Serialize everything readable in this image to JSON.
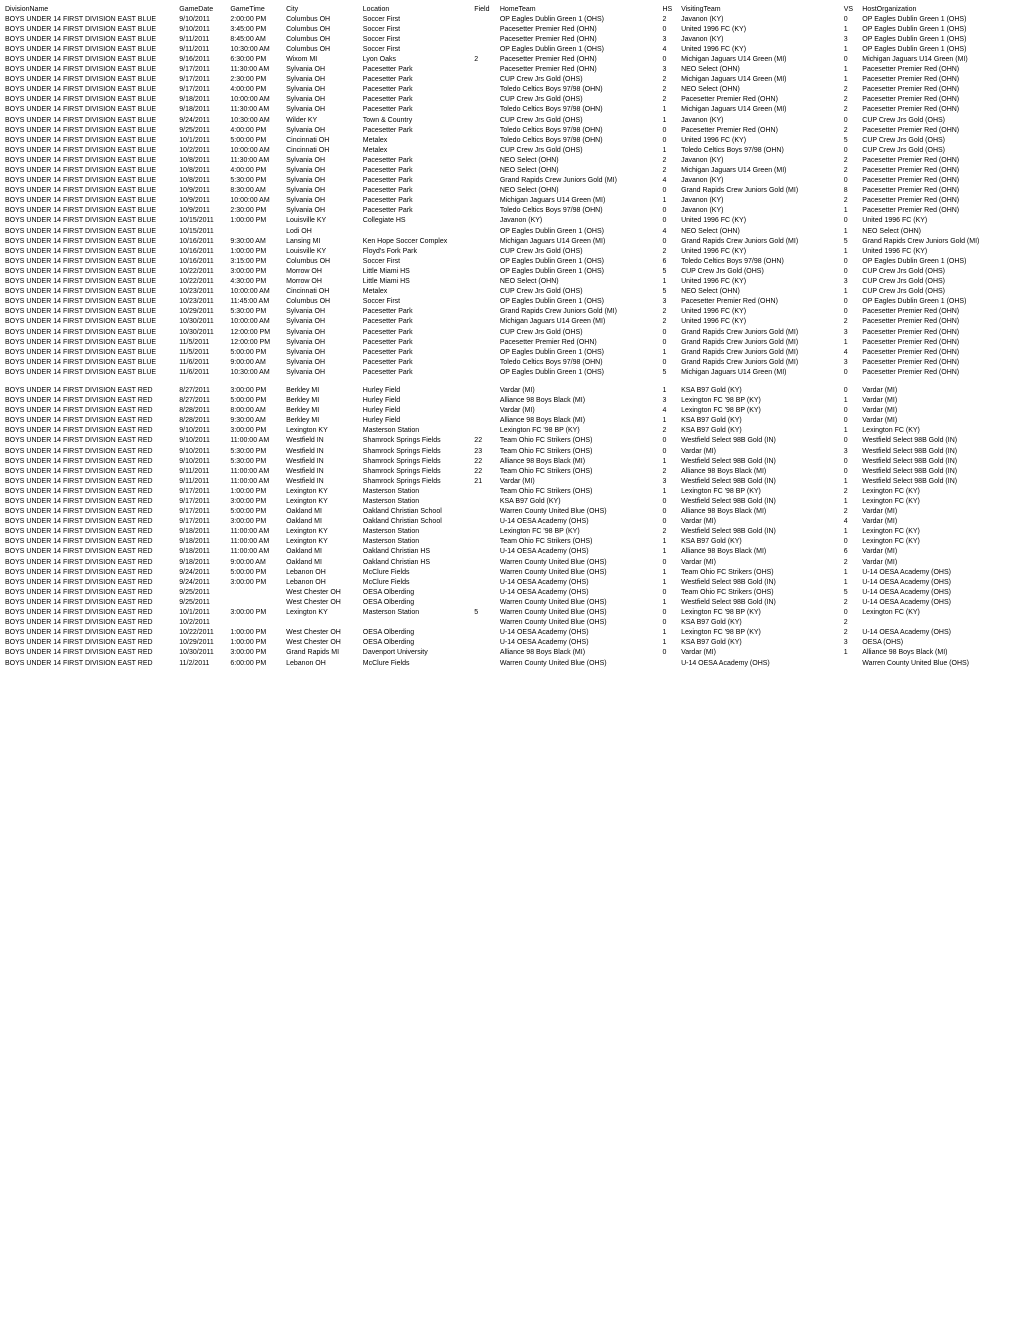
{
  "headers": [
    "DivisionName",
    "GameDate",
    "GameTime",
    "City",
    "Location",
    "Field",
    "HomeTeam",
    "HS",
    "VisitingTeam",
    "VS",
    "HostOrganization"
  ],
  "rows": [
    [
      "BOYS UNDER 14 FIRST DIVISION EAST BLUE",
      "9/10/2011",
      "2:00:00 PM",
      "Columbus OH",
      "Soccer First",
      "",
      "OP Eagles Dublin Green 1 (OHS)",
      "2",
      "Javanon (KY)",
      "0",
      "OP Eagles Dublin Green 1 (OHS)"
    ],
    [
      "BOYS UNDER 14 FIRST DIVISION EAST BLUE",
      "9/10/2011",
      "3:45:00 PM",
      "Columbus OH",
      "Soccer First",
      "",
      "Pacesetter Premier Red (OHN)",
      "0",
      "United 1996 FC (KY)",
      "1",
      "OP Eagles Dublin Green 1 (OHS)"
    ],
    [
      "BOYS UNDER 14 FIRST DIVISION EAST BLUE",
      "9/11/2011",
      "8:45:00 AM",
      "Columbus OH",
      "Soccer First",
      "",
      "Pacesetter Premier Red (OHN)",
      "3",
      "Javanon (KY)",
      "3",
      "OP Eagles Dublin Green 1 (OHS)"
    ],
    [
      "BOYS UNDER 14 FIRST DIVISION EAST BLUE",
      "9/11/2011",
      "10:30:00 AM",
      "Columbus OH",
      "Soccer First",
      "",
      "OP Eagles Dublin Green 1 (OHS)",
      "4",
      "United 1996 FC (KY)",
      "1",
      "OP Eagles Dublin Green 1 (OHS)"
    ],
    [
      "BOYS UNDER 14 FIRST DIVISION EAST BLUE",
      "9/16/2011",
      "6:30:00 PM",
      "Wixom MI",
      "Lyon Oaks",
      "2",
      "Pacesetter Premier Red (OHN)",
      "0",
      "Michigan Jaguars U14 Green (MI)",
      "0",
      "Michigan Jaguars U14 Green (MI)"
    ],
    [
      "BOYS UNDER 14 FIRST DIVISION EAST BLUE",
      "9/17/2011",
      "11:30:00 AM",
      "Sylvania OH",
      "Pacesetter Park",
      "",
      "Pacesetter Premier Red (OHN)",
      "3",
      "NEO Select (OHN)",
      "1",
      "Pacesetter Premier Red (OHN)"
    ],
    [
      "BOYS UNDER 14 FIRST DIVISION EAST BLUE",
      "9/17/2011",
      "2:30:00 PM",
      "Sylvania OH",
      "Pacesetter Park",
      "",
      "CUP Crew Jrs Gold (OHS)",
      "2",
      "Michigan Jaguars U14 Green (MI)",
      "1",
      "Pacesetter Premier Red (OHN)"
    ],
    [
      "BOYS UNDER 14 FIRST DIVISION EAST BLUE",
      "9/17/2011",
      "4:00:00 PM",
      "Sylvania OH",
      "Pacesetter Park",
      "",
      "Toledo Celtics Boys 97/98 (OHN)",
      "2",
      "NEO Select (OHN)",
      "2",
      "Pacesetter Premier Red (OHN)"
    ],
    [
      "BOYS UNDER 14 FIRST DIVISION EAST BLUE",
      "9/18/2011",
      "10:00:00 AM",
      "Sylvania OH",
      "Pacesetter Park",
      "",
      "CUP Crew Jrs Gold (OHS)",
      "2",
      "Pacesetter Premier Red (OHN)",
      "2",
      "Pacesetter Premier Red (OHN)"
    ],
    [
      "BOYS UNDER 14 FIRST DIVISION EAST BLUE",
      "9/18/2011",
      "11:30:00 AM",
      "Sylvania OH",
      "Pacesetter Park",
      "",
      "Toledo Celtics Boys 97/98 (OHN)",
      "1",
      "Michigan Jaguars U14 Green (MI)",
      "2",
      "Pacesetter Premier Red (OHN)"
    ],
    [
      "BOYS UNDER 14 FIRST DIVISION EAST BLUE",
      "9/24/2011",
      "10:30:00 AM",
      "Wilder KY",
      "Town & Country",
      "",
      "CUP Crew Jrs Gold (OHS)",
      "1",
      "Javanon (KY)",
      "0",
      "CUP Crew Jrs Gold (OHS)"
    ],
    [
      "BOYS UNDER 14 FIRST DIVISION EAST BLUE",
      "9/25/2011",
      "4:00:00 PM",
      "Sylvania OH",
      "Pacesetter Park",
      "",
      "Toledo Celtics Boys 97/98 (OHN)",
      "0",
      "Pacesetter Premier Red (OHN)",
      "2",
      "Pacesetter Premier Red (OHN)"
    ],
    [
      "BOYS UNDER 14 FIRST DIVISION EAST BLUE",
      "10/1/2011",
      "5:00:00 PM",
      "Cincinnati OH",
      "Metalex",
      "",
      "Toledo Celtics Boys 97/98 (OHN)",
      "0",
      "United 1996 FC (KY)",
      "5",
      "CUP Crew Jrs Gold (OHS)"
    ],
    [
      "BOYS UNDER 14 FIRST DIVISION EAST BLUE",
      "10/2/2011",
      "10:00:00 AM",
      "Cincinnati OH",
      "Metalex",
      "",
      "CUP Crew Jrs Gold (OHS)",
      "1",
      "Toledo Celtics Boys 97/98 (OHN)",
      "0",
      "CUP Crew Jrs Gold (OHS)"
    ],
    [
      "BOYS UNDER 14 FIRST DIVISION EAST BLUE",
      "10/8/2011",
      "11:30:00 AM",
      "Sylvania OH",
      "Pacesetter Park",
      "",
      "NEO Select (OHN)",
      "2",
      "Javanon (KY)",
      "2",
      "Pacesetter Premier Red (OHN)"
    ],
    [
      "BOYS UNDER 14 FIRST DIVISION EAST BLUE",
      "10/8/2011",
      "4:00:00 PM",
      "Sylvania OH",
      "Pacesetter Park",
      "",
      "NEO Select (OHN)",
      "2",
      "Michigan Jaguars U14 Green (MI)",
      "2",
      "Pacesetter Premier Red (OHN)"
    ],
    [
      "BOYS UNDER 14 FIRST DIVISION EAST BLUE",
      "10/8/2011",
      "5:30:00 PM",
      "Sylvania OH",
      "Pacesetter Park",
      "",
      "Grand Rapids Crew Juniors Gold (MI)",
      "4",
      "Javanon (KY)",
      "0",
      "Pacesetter Premier Red (OHN)"
    ],
    [
      "BOYS UNDER 14 FIRST DIVISION EAST BLUE",
      "10/9/2011",
      "8:30:00 AM",
      "Sylvania OH",
      "Pacesetter Park",
      "",
      "NEO Select (OHN)",
      "0",
      "Grand Rapids Crew Juniors Gold (MI)",
      "8",
      "Pacesetter Premier Red (OHN)"
    ],
    [
      "BOYS UNDER 14 FIRST DIVISION EAST BLUE",
      "10/9/2011",
      "10:00:00 AM",
      "Sylvania OH",
      "Pacesetter Park",
      "",
      "Michigan Jaguars U14 Green (MI)",
      "1",
      "Javanon (KY)",
      "2",
      "Pacesetter Premier Red (OHN)"
    ],
    [
      "BOYS UNDER 14 FIRST DIVISION EAST BLUE",
      "10/9/2011",
      "2:30:00 PM",
      "Sylvania OH",
      "Pacesetter Park",
      "",
      "Toledo Celtics Boys 97/98 (OHN)",
      "0",
      "Javanon (KY)",
      "1",
      "Pacesetter Premier Red (OHN)"
    ],
    [
      "BOYS UNDER 14 FIRST DIVISION EAST BLUE",
      "10/15/2011",
      "1:00:00 PM",
      "Louisville KY",
      "Collegiate HS",
      "",
      "Javanon (KY)",
      "0",
      "United 1996 FC (KY)",
      "0",
      "United 1996 FC (KY)"
    ],
    [
      "BOYS UNDER 14 FIRST DIVISION EAST BLUE",
      "10/15/2011",
      "",
      "Lodi OH",
      "",
      "",
      "OP Eagles Dublin Green 1 (OHS)",
      "4",
      "NEO Select (OHN)",
      "1",
      "NEO Select (OHN)"
    ],
    [
      "BOYS UNDER 14 FIRST DIVISION EAST BLUE",
      "10/16/2011",
      "9:30:00 AM",
      "Lansing MI",
      "Ken Hope Soccer Complex",
      "",
      "Michigan Jaguars U14 Green (MI)",
      "0",
      "Grand Rapids Crew Juniors Gold (MI)",
      "5",
      "Grand Rapids Crew Juniors Gold (MI)"
    ],
    [
      "BOYS UNDER 14 FIRST DIVISION EAST BLUE",
      "10/16/2011",
      "1:00:00 PM",
      "Louisville KY",
      "Floyd's Fork Park",
      "",
      "CUP Crew Jrs Gold (OHS)",
      "2",
      "United 1996 FC (KY)",
      "1",
      "United 1996 FC (KY)"
    ],
    [
      "BOYS UNDER 14 FIRST DIVISION EAST BLUE",
      "10/16/2011",
      "3:15:00 PM",
      "Columbus OH",
      "Soccer First",
      "",
      "OP Eagles Dublin Green 1 (OHS)",
      "6",
      "Toledo Celtics Boys 97/98 (OHN)",
      "0",
      "OP Eagles Dublin Green 1 (OHS)"
    ],
    [
      "BOYS UNDER 14 FIRST DIVISION EAST BLUE",
      "10/22/2011",
      "3:00:00 PM",
      "Morrow OH",
      "Little Miami HS",
      "",
      "OP Eagles Dublin Green 1 (OHS)",
      "5",
      "CUP Crew Jrs Gold (OHS)",
      "0",
      "CUP Crew Jrs Gold (OHS)"
    ],
    [
      "BOYS UNDER 14 FIRST DIVISION EAST BLUE",
      "10/22/2011",
      "4:30:00 PM",
      "Morrow OH",
      "Little Miami HS",
      "",
      "NEO Select (OHN)",
      "1",
      "United 1996 FC (KY)",
      "3",
      "CUP Crew Jrs Gold (OHS)"
    ],
    [
      "BOYS UNDER 14 FIRST DIVISION EAST BLUE",
      "10/23/2011",
      "10:00:00 AM",
      "Cincinnati OH",
      "Metalex",
      "",
      "CUP Crew Jrs Gold (OHS)",
      "5",
      "NEO Select (OHN)",
      "1",
      "CUP Crew Jrs Gold (OHS)"
    ],
    [
      "BOYS UNDER 14 FIRST DIVISION EAST BLUE",
      "10/23/2011",
      "11:45:00 AM",
      "Columbus OH",
      "Soccer First",
      "",
      "OP Eagles Dublin Green 1 (OHS)",
      "3",
      "Pacesetter Premier Red (OHN)",
      "0",
      "OP Eagles Dublin Green 1 (OHS)"
    ],
    [
      "BOYS UNDER 14 FIRST DIVISION EAST BLUE",
      "10/29/2011",
      "5:30:00 PM",
      "Sylvania OH",
      "Pacesetter Park",
      "",
      "Grand Rapids Crew Juniors Gold (MI)",
      "2",
      "United 1996 FC (KY)",
      "0",
      "Pacesetter Premier Red (OHN)"
    ],
    [
      "BOYS UNDER 14 FIRST DIVISION EAST BLUE",
      "10/30/2011",
      "10:00:00 AM",
      "Sylvania OH",
      "Pacesetter Park",
      "",
      "Michigan Jaguars U14 Green (MI)",
      "2",
      "United 1996 FC (KY)",
      "2",
      "Pacesetter Premier Red (OHN)"
    ],
    [
      "BOYS UNDER 14 FIRST DIVISION EAST BLUE",
      "10/30/2011",
      "12:00:00 PM",
      "Sylvania OH",
      "Pacesetter Park",
      "",
      "CUP Crew Jrs Gold (OHS)",
      "0",
      "Grand Rapids Crew Juniors Gold (MI)",
      "3",
      "Pacesetter Premier Red (OHN)"
    ],
    [
      "BOYS UNDER 14 FIRST DIVISION EAST BLUE",
      "11/5/2011",
      "12:00:00 PM",
      "Sylvania OH",
      "Pacesetter Park",
      "",
      "Pacesetter Premier Red (OHN)",
      "0",
      "Grand Rapids Crew Juniors Gold (MI)",
      "1",
      "Pacesetter Premier Red (OHN)"
    ],
    [
      "BOYS UNDER 14 FIRST DIVISION EAST BLUE",
      "11/5/2011",
      "5:00:00 PM",
      "Sylvania OH",
      "Pacesetter Park",
      "",
      "OP Eagles Dublin Green 1 (OHS)",
      "1",
      "Grand Rapids Crew Juniors Gold (MI)",
      "4",
      "Pacesetter Premier Red (OHN)"
    ],
    [
      "BOYS UNDER 14 FIRST DIVISION EAST BLUE",
      "11/6/2011",
      "9:00:00 AM",
      "Sylvania OH",
      "Pacesetter Park",
      "",
      "Toledo Celtics Boys 97/98 (OHN)",
      "0",
      "Grand Rapids Crew Juniors Gold (MI)",
      "3",
      "Pacesetter Premier Red (OHN)"
    ],
    [
      "BOYS UNDER 14 FIRST DIVISION EAST BLUE",
      "11/6/2011",
      "10:30:00 AM",
      "Sylvania OH",
      "Pacesetter Park",
      "",
      "OP Eagles Dublin Green 1 (OHS)",
      "5",
      "Michigan Jaguars U14 Green (MI)",
      "0",
      "Pacesetter Premier Red (OHN)"
    ],
    [],
    [
      "BOYS UNDER 14 FIRST DIVISION EAST RED",
      "8/27/2011",
      "3:00:00 PM",
      "Berkley MI",
      "Hurley Field",
      "",
      "Vardar (MI)",
      "1",
      "KSA B97 Gold (KY)",
      "0",
      "Vardar (MI)"
    ],
    [
      "BOYS UNDER 14 FIRST DIVISION EAST RED",
      "8/27/2011",
      "5:00:00 PM",
      "Berkley MI",
      "Hurley Field",
      "",
      "Alliance 98 Boys Black (MI)",
      "3",
      "Lexington FC '98 BP (KY)",
      "1",
      "Vardar (MI)"
    ],
    [
      "BOYS UNDER 14 FIRST DIVISION EAST RED",
      "8/28/2011",
      "8:00:00 AM",
      "Berkley MI",
      "Hurley Field",
      "",
      "Vardar (MI)",
      "4",
      "Lexington FC '98 BP (KY)",
      "0",
      "Vardar (MI)"
    ],
    [
      "BOYS UNDER 14 FIRST DIVISION EAST RED",
      "8/28/2011",
      "9:30:00 AM",
      "Berkley MI",
      "Hurley Field",
      "",
      "Alliance 98 Boys Black (MI)",
      "1",
      "KSA B97 Gold (KY)",
      "0",
      "Vardar (MI)"
    ],
    [
      "BOYS UNDER 14 FIRST DIVISION EAST RED",
      "9/10/2011",
      "3:00:00 PM",
      "Lexington KY",
      "Masterson Station",
      "",
      "Lexington FC '98 BP (KY)",
      "2",
      "KSA B97 Gold (KY)",
      "1",
      "Lexington FC (KY)"
    ],
    [
      "BOYS UNDER 14 FIRST DIVISION EAST RED",
      "9/10/2011",
      "11:00:00 AM",
      "Westfield IN",
      "Shamrock Springs Fields",
      "22",
      "Team Ohio FC Strikers (OHS)",
      "0",
      "Westfield Select 98B Gold (IN)",
      "0",
      "Westfield Select 98B Gold (IN)"
    ],
    [
      "BOYS UNDER 14 FIRST DIVISION EAST RED",
      "9/10/2011",
      "5:30:00 PM",
      "Westfield IN",
      "Shamrock Springs Fields",
      "23",
      "Team Ohio FC Strikers (OHS)",
      "0",
      "Vardar (MI)",
      "3",
      "Westfield Select 98B Gold (IN)"
    ],
    [
      "BOYS UNDER 14 FIRST DIVISION EAST RED",
      "9/10/2011",
      "5:30:00 PM",
      "Westfield IN",
      "Shamrock Springs Fields",
      "22",
      "Alliance 98 Boys Black (MI)",
      "1",
      "Westfield Select 98B Gold (IN)",
      "0",
      "Westfield Select 98B Gold (IN)"
    ],
    [
      "BOYS UNDER 14 FIRST DIVISION EAST RED",
      "9/11/2011",
      "11:00:00 AM",
      "Westfield IN",
      "Shamrock Springs Fields",
      "22",
      "Team Ohio FC Strikers (OHS)",
      "2",
      "Alliance 98 Boys Black (MI)",
      "0",
      "Westfield Select 98B Gold (IN)"
    ],
    [
      "BOYS UNDER 14 FIRST DIVISION EAST RED",
      "9/11/2011",
      "11:00:00 AM",
      "Westfield IN",
      "Shamrock Springs Fields",
      "21",
      "Vardar (MI)",
      "3",
      "Westfield Select 98B Gold (IN)",
      "1",
      "Westfield Select 98B Gold (IN)"
    ],
    [
      "BOYS UNDER 14 FIRST DIVISION EAST RED",
      "9/17/2011",
      "1:00:00 PM",
      "Lexington KY",
      "Masterson Station",
      "",
      "Team Ohio FC Strikers (OHS)",
      "1",
      "Lexington FC '98 BP (KY)",
      "2",
      "Lexington FC (KY)"
    ],
    [
      "BOYS UNDER 14 FIRST DIVISION EAST RED",
      "9/17/2011",
      "3:00:00 PM",
      "Lexington KY",
      "Masterson Station",
      "",
      "KSA B97 Gold (KY)",
      "0",
      "Westfield Select 98B Gold (IN)",
      "1",
      "Lexington FC (KY)"
    ],
    [
      "BOYS UNDER 14 FIRST DIVISION EAST RED",
      "9/17/2011",
      "5:00:00 PM",
      "Oakland MI",
      "Oakland Christian School",
      "",
      "Warren County United Blue (OHS)",
      "0",
      "Alliance 98 Boys Black (MI)",
      "2",
      "Vardar (MI)"
    ],
    [
      "BOYS UNDER 14 FIRST DIVISION EAST RED",
      "9/17/2011",
      "3:00:00 PM",
      "Oakland MI",
      "Oakland Christian School",
      "",
      "U-14 OESA Academy (OHS)",
      "0",
      "Vardar (MI)",
      "4",
      "Vardar (MI)"
    ],
    [
      "BOYS UNDER 14 FIRST DIVISION EAST RED",
      "9/18/2011",
      "11:00:00 AM",
      "Lexington KY",
      "Masterson Station",
      "",
      "Lexington FC '98 BP (KY)",
      "2",
      "Westfield Select 98B Gold (IN)",
      "1",
      "Lexington FC (KY)"
    ],
    [
      "BOYS UNDER 14 FIRST DIVISION EAST RED",
      "9/18/2011",
      "11:00:00 AM",
      "Lexington KY",
      "Masterson Station",
      "",
      "Team Ohio FC Strikers (OHS)",
      "1",
      "KSA B97 Gold (KY)",
      "0",
      "Lexington FC (KY)"
    ],
    [
      "BOYS UNDER 14 FIRST DIVISION EAST RED",
      "9/18/2011",
      "11:00:00 AM",
      "Oakland MI",
      "Oakland Christian HS",
      "",
      "U-14 OESA Academy (OHS)",
      "1",
      "Alliance 98 Boys Black (MI)",
      "6",
      "Vardar (MI)"
    ],
    [
      "BOYS UNDER 14 FIRST DIVISION EAST RED",
      "9/18/2011",
      "9:00:00 AM",
      "Oakland MI",
      "Oakland Christian HS",
      "",
      "Warren County United Blue (OHS)",
      "0",
      "Vardar (MI)",
      "2",
      "Vardar (MI)"
    ],
    [
      "BOYS UNDER 14 FIRST DIVISION EAST RED",
      "9/24/2011",
      "5:00:00 PM",
      "Lebanon OH",
      "McClure Fields",
      "",
      "Warren County United Blue (OHS)",
      "1",
      "Team Ohio FC Strikers (OHS)",
      "1",
      "U-14 OESA Academy (OHS)"
    ],
    [
      "BOYS UNDER 14 FIRST DIVISION EAST RED",
      "9/24/2011",
      "3:00:00 PM",
      "Lebanon OH",
      "McClure Fields",
      "",
      "U-14 OESA Academy (OHS)",
      "1",
      "Westfield Select 98B Gold (IN)",
      "1",
      "U-14 OESA Academy (OHS)"
    ],
    [
      "BOYS UNDER 14 FIRST DIVISION EAST RED",
      "9/25/2011",
      "",
      "West Chester OH",
      "OESA Olberding",
      "",
      "U-14 OESA Academy (OHS)",
      "0",
      "Team Ohio FC Strikers (OHS)",
      "5",
      "U-14 OESA Academy (OHS)"
    ],
    [
      "BOYS UNDER 14 FIRST DIVISION EAST RED",
      "9/25/2011",
      "",
      "West Chester OH",
      "OESA Olberding",
      "",
      "Warren County United Blue (OHS)",
      "1",
      "Westfield Select 98B Gold (IN)",
      "2",
      "U-14 OESA Academy (OHS)"
    ],
    [
      "BOYS UNDER 14 FIRST DIVISION EAST RED",
      "10/1/2011",
      "3:00:00 PM",
      "Lexington KY",
      "Masterson Station",
      "5",
      "Warren County United Blue (OHS)",
      "0",
      "Lexington FC '98 BP (KY)",
      "0",
      "Lexington FC (KY)"
    ],
    [
      "BOYS UNDER 14 FIRST DIVISION EAST RED",
      "10/2/2011",
      "",
      "",
      "",
      "",
      "Warren County United Blue (OHS)",
      "0",
      "KSA B97 Gold (KY)",
      "2",
      ""
    ],
    [
      "BOYS UNDER 14 FIRST DIVISION EAST RED",
      "10/22/2011",
      "1:00:00 PM",
      "West Chester OH",
      "OESA Olberding",
      "",
      "U-14 OESA Academy (OHS)",
      "1",
      "Lexington FC '98 BP (KY)",
      "2",
      "U-14 OESA Academy (OHS)"
    ],
    [
      "BOYS UNDER 14 FIRST DIVISION EAST RED",
      "10/29/2011",
      "1:00:00 PM",
      "West Chester OH",
      "OESA Olberding",
      "",
      "U-14 OESA Academy (OHS)",
      "1",
      "KSA B97 Gold (KY)",
      "3",
      "OESA (OHS)"
    ],
    [
      "BOYS UNDER 14 FIRST DIVISION EAST RED",
      "10/30/2011",
      "3:00:00 PM",
      "Grand Rapids MI",
      "Davenport University",
      "",
      "Alliance 98 Boys Black (MI)",
      "0",
      "Vardar (MI)",
      "1",
      "Alliance 98 Boys Black (MI)"
    ],
    [
      "BOYS UNDER 14 FIRST DIVISION EAST RED",
      "11/2/2011",
      "6:00:00 PM",
      "Lebanon OH",
      "McClure Fields",
      "",
      "Warren County United Blue (OHS)",
      "",
      "U-14 OESA Academy (OHS)",
      "",
      "Warren County United Blue (OHS)"
    ]
  ],
  "col_classes": [
    "col-div",
    "col-date",
    "col-time",
    "col-city",
    "col-loc",
    "col-field",
    "col-home",
    "col-hs",
    "col-visit",
    "col-vs",
    "col-host"
  ]
}
